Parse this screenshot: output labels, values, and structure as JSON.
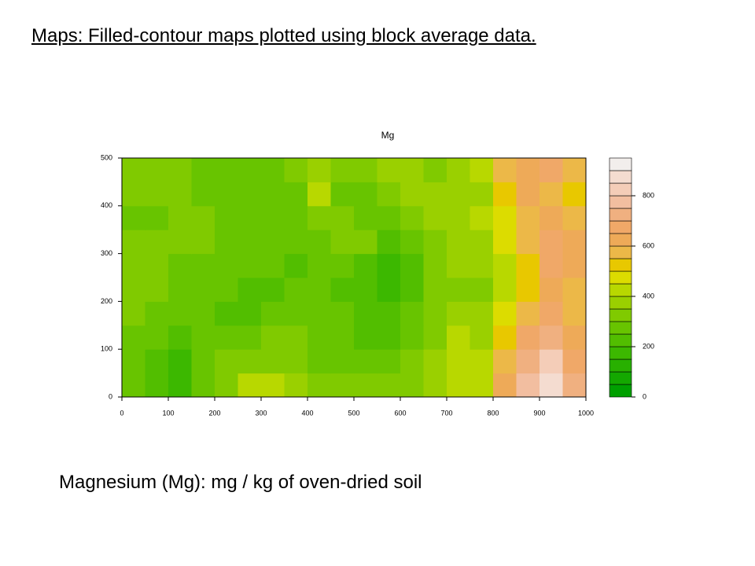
{
  "slide_title": "Maps: Filled-contour maps plotted using block average data.",
  "caption": "Magnesium (Mg): mg / kg of oven-dried soil",
  "chart_data": {
    "type": "contour",
    "title": "Mg",
    "x": [
      25,
      75,
      125,
      175,
      225,
      275,
      325,
      375,
      425,
      475,
      525,
      575,
      625,
      675,
      725,
      775,
      825,
      875,
      925,
      975
    ],
    "y": [
      25,
      75,
      125,
      175,
      225,
      275,
      325,
      375,
      425,
      475
    ],
    "z": [
      [
        250,
        200,
        150,
        250,
        300,
        400,
        420,
        350,
        300,
        300,
        320,
        300,
        300,
        350,
        400,
        420,
        600,
        750,
        850,
        700
      ],
      [
        250,
        200,
        150,
        250,
        300,
        300,
        320,
        300,
        280,
        280,
        250,
        250,
        300,
        350,
        400,
        400,
        550,
        700,
        800,
        650
      ],
      [
        280,
        250,
        200,
        250,
        280,
        250,
        320,
        300,
        270,
        250,
        220,
        220,
        260,
        330,
        420,
        380,
        500,
        650,
        700,
        600
      ],
      [
        300,
        270,
        250,
        260,
        220,
        200,
        250,
        270,
        250,
        250,
        200,
        200,
        250,
        300,
        350,
        380,
        450,
        550,
        650,
        550
      ],
      [
        300,
        300,
        280,
        260,
        250,
        240,
        220,
        260,
        250,
        230,
        200,
        170,
        200,
        320,
        320,
        340,
        420,
        520,
        600,
        550
      ],
      [
        330,
        300,
        290,
        270,
        260,
        260,
        250,
        240,
        250,
        250,
        240,
        180,
        220,
        330,
        350,
        360,
        430,
        520,
        650,
        600
      ],
      [
        300,
        300,
        300,
        300,
        280,
        260,
        260,
        250,
        270,
        300,
        300,
        200,
        280,
        330,
        350,
        350,
        450,
        550,
        650,
        600
      ],
      [
        280,
        250,
        300,
        300,
        280,
        270,
        270,
        270,
        330,
        320,
        250,
        250,
        300,
        350,
        380,
        400,
        480,
        550,
        600,
        580
      ],
      [
        300,
        300,
        300,
        280,
        270,
        260,
        270,
        280,
        400,
        250,
        280,
        300,
        350,
        380,
        350,
        380,
        500,
        600,
        550,
        500
      ],
      [
        300,
        300,
        300,
        290,
        280,
        270,
        280,
        300,
        380,
        300,
        300,
        350,
        380,
        330,
        380,
        400,
        550,
        600,
        650,
        550
      ]
    ],
    "xlim": [
      0,
      1000
    ],
    "xticks": [
      0,
      100,
      200,
      300,
      400,
      500,
      600,
      700,
      800,
      900,
      1000
    ],
    "ylim": [
      0,
      500
    ],
    "yticks": [
      0,
      100,
      200,
      300,
      400,
      500
    ],
    "levels": [
      0,
      50,
      100,
      150,
      200,
      250,
      300,
      350,
      400,
      450,
      500,
      550,
      600,
      650,
      700,
      750,
      800,
      850,
      900,
      950
    ],
    "colors": [
      "#00a000",
      "#14a800",
      "#28b000",
      "#3cb800",
      "#52be00",
      "#68c400",
      "#80ca00",
      "#9ad000",
      "#b8d800",
      "#dcdc00",
      "#e8c800",
      "#ecb848",
      "#eeaa58",
      "#f0a868",
      "#f0b080",
      "#f2bea0",
      "#f4cdb8",
      "#f4dcd0",
      "#f2eeec"
    ],
    "colorbar_ticks": [
      0,
      200,
      400,
      600,
      800
    ]
  }
}
